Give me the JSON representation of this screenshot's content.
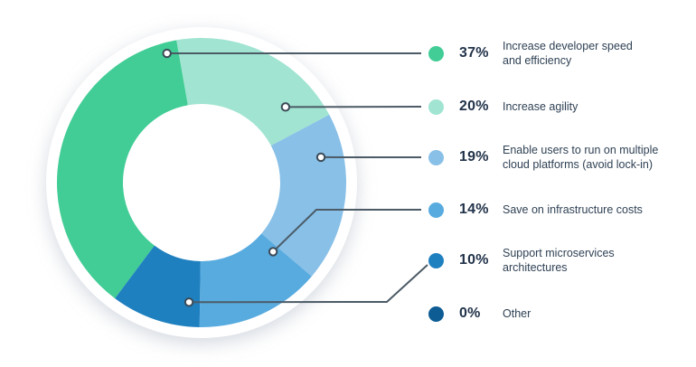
{
  "chart_data": {
    "type": "donut",
    "title": "",
    "unit": "%",
    "legend_position": "right",
    "start_angle_deg": 216.8,
    "slices": [
      {
        "label": "Increase developer speed and efficiency",
        "label_lines": [
          "Increase developer speed",
          "and efficiency"
        ],
        "value": 37,
        "pct_label": "37%",
        "color": "#41cd95"
      },
      {
        "label": "Increase agility",
        "label_lines": [
          "Increase agility"
        ],
        "value": 20,
        "pct_label": "20%",
        "color": "#a0e4d1"
      },
      {
        "label": "Enable users to run on multiple cloud platforms (avoid lock-in)",
        "label_lines": [
          "Enable users to run on multiple",
          "cloud platforms (avoid lock-in)"
        ],
        "value": 19,
        "pct_label": "19%",
        "color": "#88c0e8"
      },
      {
        "label": "Save on infrastructure costs",
        "label_lines": [
          "Save on infrastructure costs"
        ],
        "value": 14,
        "pct_label": "14%",
        "color": "#58abdf"
      },
      {
        "label": "Support microservices architectures",
        "label_lines": [
          "Support microservices",
          "architectures"
        ],
        "value": 10,
        "pct_label": "10%",
        "color": "#1f80c0"
      },
      {
        "label": "Other",
        "label_lines": [
          "Other"
        ],
        "value": 0,
        "pct_label": "0%",
        "color": "#0d5c94"
      }
    ],
    "colors": {
      "connector_line": "#4c5b66",
      "connector_dot_stroke": "#3c4b57",
      "connector_dot_fill": "#ffffff",
      "percent_text": "#22334a",
      "label_text": "#2f4154",
      "background": "#ffffff"
    }
  }
}
